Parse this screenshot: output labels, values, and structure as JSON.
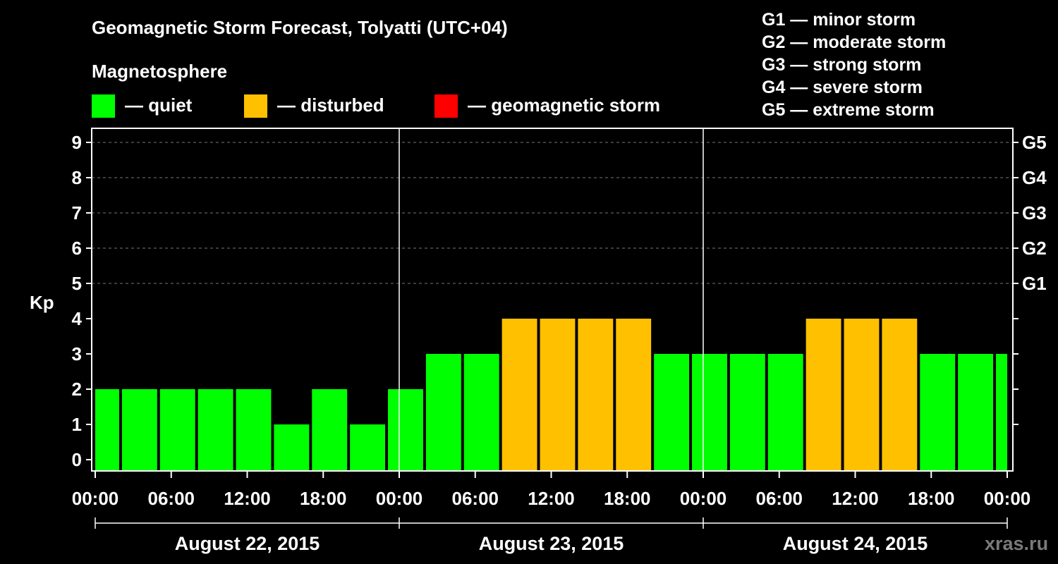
{
  "header": {
    "title": "Geomagnetic Storm Forecast, Tolyatti (UTC+04)",
    "magnetosphere_label": "Magnetosphere"
  },
  "legend": [
    {
      "color": "#00ff00",
      "label": "— quiet"
    },
    {
      "color": "#ffc000",
      "label": "— disturbed"
    },
    {
      "color": "#ff0000",
      "label": "— geomagnetic storm"
    }
  ],
  "storm_scale": [
    "G1 — minor storm",
    "G2 — moderate storm",
    "G3 — strong storm",
    "G4 — severe storm",
    "G5 — extreme storm"
  ],
  "watermark": "xras.ru",
  "chart_data": {
    "type": "bar",
    "title": "Geomagnetic Storm Forecast, Tolyatti (UTC+04)",
    "ylabel": "Kp",
    "ylim": [
      0,
      9
    ],
    "y_ticks": [
      "0",
      "1",
      "2",
      "3",
      "4",
      "5",
      "6",
      "7",
      "8",
      "9"
    ],
    "right_ticks": [
      {
        "kp": 5,
        "label": "G1"
      },
      {
        "kp": 6,
        "label": "G2"
      },
      {
        "kp": 7,
        "label": "G3"
      },
      {
        "kp": 8,
        "label": "G4"
      },
      {
        "kp": 9,
        "label": "G5"
      }
    ],
    "x_tick_labels": [
      "00:00",
      "06:00",
      "12:00",
      "18:00",
      "00:00",
      "06:00",
      "12:00",
      "18:00",
      "00:00",
      "06:00",
      "12:00",
      "18:00",
      "00:00"
    ],
    "days": [
      "August 22, 2015",
      "August 23, 2015",
      "August 24, 2015"
    ],
    "interval_hours": 3,
    "first_bar_start_hour": -1,
    "values": [
      2,
      2,
      2,
      2,
      2,
      1,
      2,
      1,
      2,
      3,
      3,
      4,
      4,
      4,
      4,
      3,
      3,
      3,
      3,
      4,
      4,
      4,
      3,
      3,
      3
    ],
    "colors": {
      "quiet": "#00ff00",
      "disturbed": "#ffc000",
      "storm": "#ff0000"
    },
    "grid": true
  }
}
